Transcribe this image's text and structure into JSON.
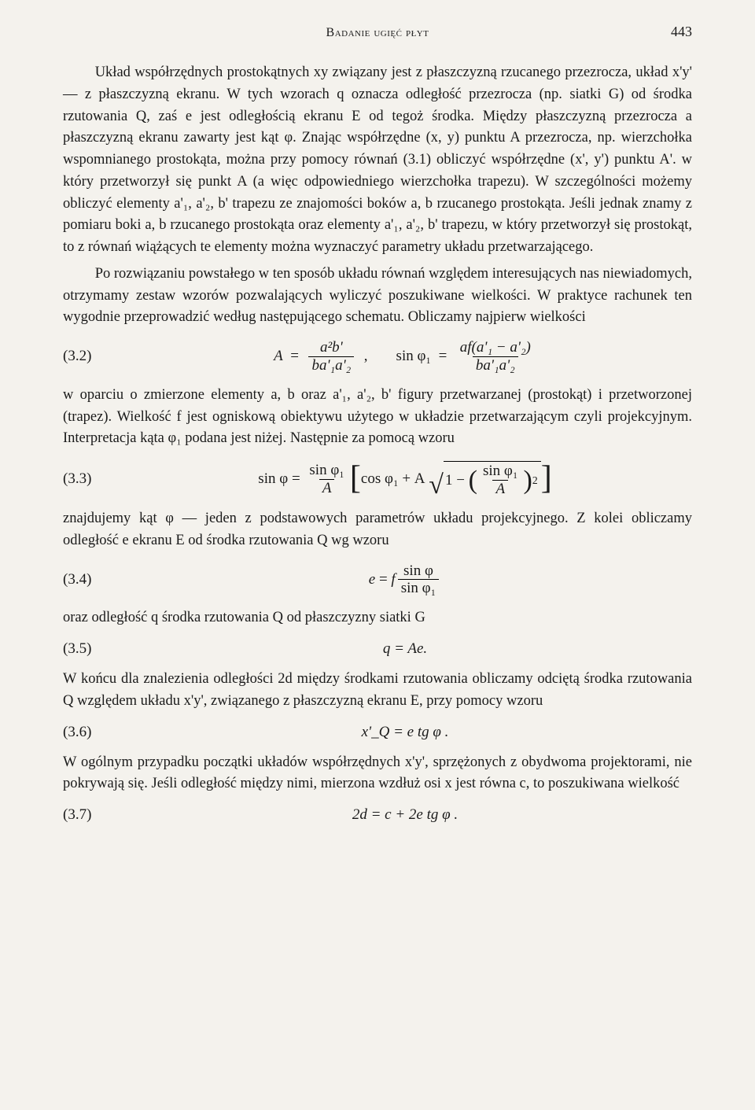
{
  "header": {
    "running_head": "Badanie ugięć płyt",
    "page_number": "443"
  },
  "paragraphs": {
    "p1": "Układ współrzędnych prostokątnych xy związany jest z płaszczyzną rzucanego przezrocza, układ x'y' — z płaszczyzną ekranu. W tych wzorach q oznacza odległość przezrocza (np. siatki G) od środka rzutowania Q, zaś e jest odległością ekranu E od tegoż środka. Między płaszczyzną przezrocza a płaszczyzną ekranu zawarty jest kąt φ. Znając współrzędne (x, y) punktu A przezrocza, np. wierzchołka wspomnianego prostokąta, można przy pomocy równań (3.1) obliczyć współrzędne (x', y') punktu A'. w który przetworzył się punkt A (a więc odpowiedniego wierzchołka trapezu). W szczególności możemy obliczyć elementy a'₁, a'₂, b' trapezu ze znajomości boków a, b rzucanego prostokąta. Jeśli jednak znamy z pomiaru boki a, b rzucanego prostokąta oraz elementy a'₁, a'₂, b' trapezu, w który przetworzył się prostokąt, to z równań wiążących te elementy można wyznaczyć parametry układu przetwarzającego.",
    "p2": "Po rozwiązaniu powstałego w ten sposób układu równań względem interesujących nas niewiadomych, otrzymamy zestaw wzorów pozwalających wyliczyć poszukiwane wielkości. W praktyce rachunek ten wygodnie przeprowadzić według następującego schematu. Obliczamy najpierw wielkości",
    "p3": "w oparciu o zmierzone elementy a, b oraz a'₁, a'₂, b' figury przetwarzanej (prostokąt) i przetworzonej (trapez). Wielkość f jest ogniskową obiektywu użytego w układzie przetwarzającym czyli projekcyjnym. Interpretacja kąta φ₁ podana jest niżej. Następnie za pomocą wzoru",
    "p4": "znajdujemy kąt φ — jeden z podstawowych parametrów układu projekcyjnego. Z kolei obliczamy odległość e ekranu E od środka rzutowania Q wg wzoru",
    "p5": "oraz odległość q środka rzutowania Q od płaszczyzny siatki G",
    "p6": "W końcu dla znalezienia odległości 2d między środkami rzutowania obliczamy odciętą środka rzutowania Q względem układu x'y', związanego z płaszczyzną ekranu E, przy pomocy wzoru",
    "p7": "W ogólnym przypadku początki układów współrzędnych x'y', sprzężonych z obydwoma projektorami, nie pokrywają się. Jeśli odległość między nimi, mierzona wzdłuż osi x jest równa c, to poszukiwana wielkość"
  },
  "equations": {
    "eq32": {
      "num": "(3.2)",
      "A_lhs": "A",
      "A_frac_num": "a²b'",
      "A_frac_den": "ba'₁a'₂",
      "sin_lhs": "sin φ₁",
      "sin_frac_num": "af(a'₁ − a'₂)",
      "sin_frac_den": "ba'₁a'₂"
    },
    "eq33": {
      "num": "(3.3)",
      "lhs": "sin φ",
      "frac1_num": "sin φ₁",
      "frac1_den": "A",
      "cos_term": "cos φ₁ + A",
      "one_minus": "1 −",
      "inner_num": "sin φ₁",
      "inner_den": "A",
      "power": "2"
    },
    "eq34": {
      "num": "(3.4)",
      "lhs": "e",
      "f": "f",
      "frac_num": "sin φ",
      "frac_den": "sin φ₁"
    },
    "eq35": {
      "num": "(3.5)",
      "body": "q = Ae."
    },
    "eq36": {
      "num": "(3.6)",
      "body": "x'_Q = e tg φ ."
    },
    "eq37": {
      "num": "(3.7)",
      "body": "2d = c + 2e tg φ ."
    }
  }
}
